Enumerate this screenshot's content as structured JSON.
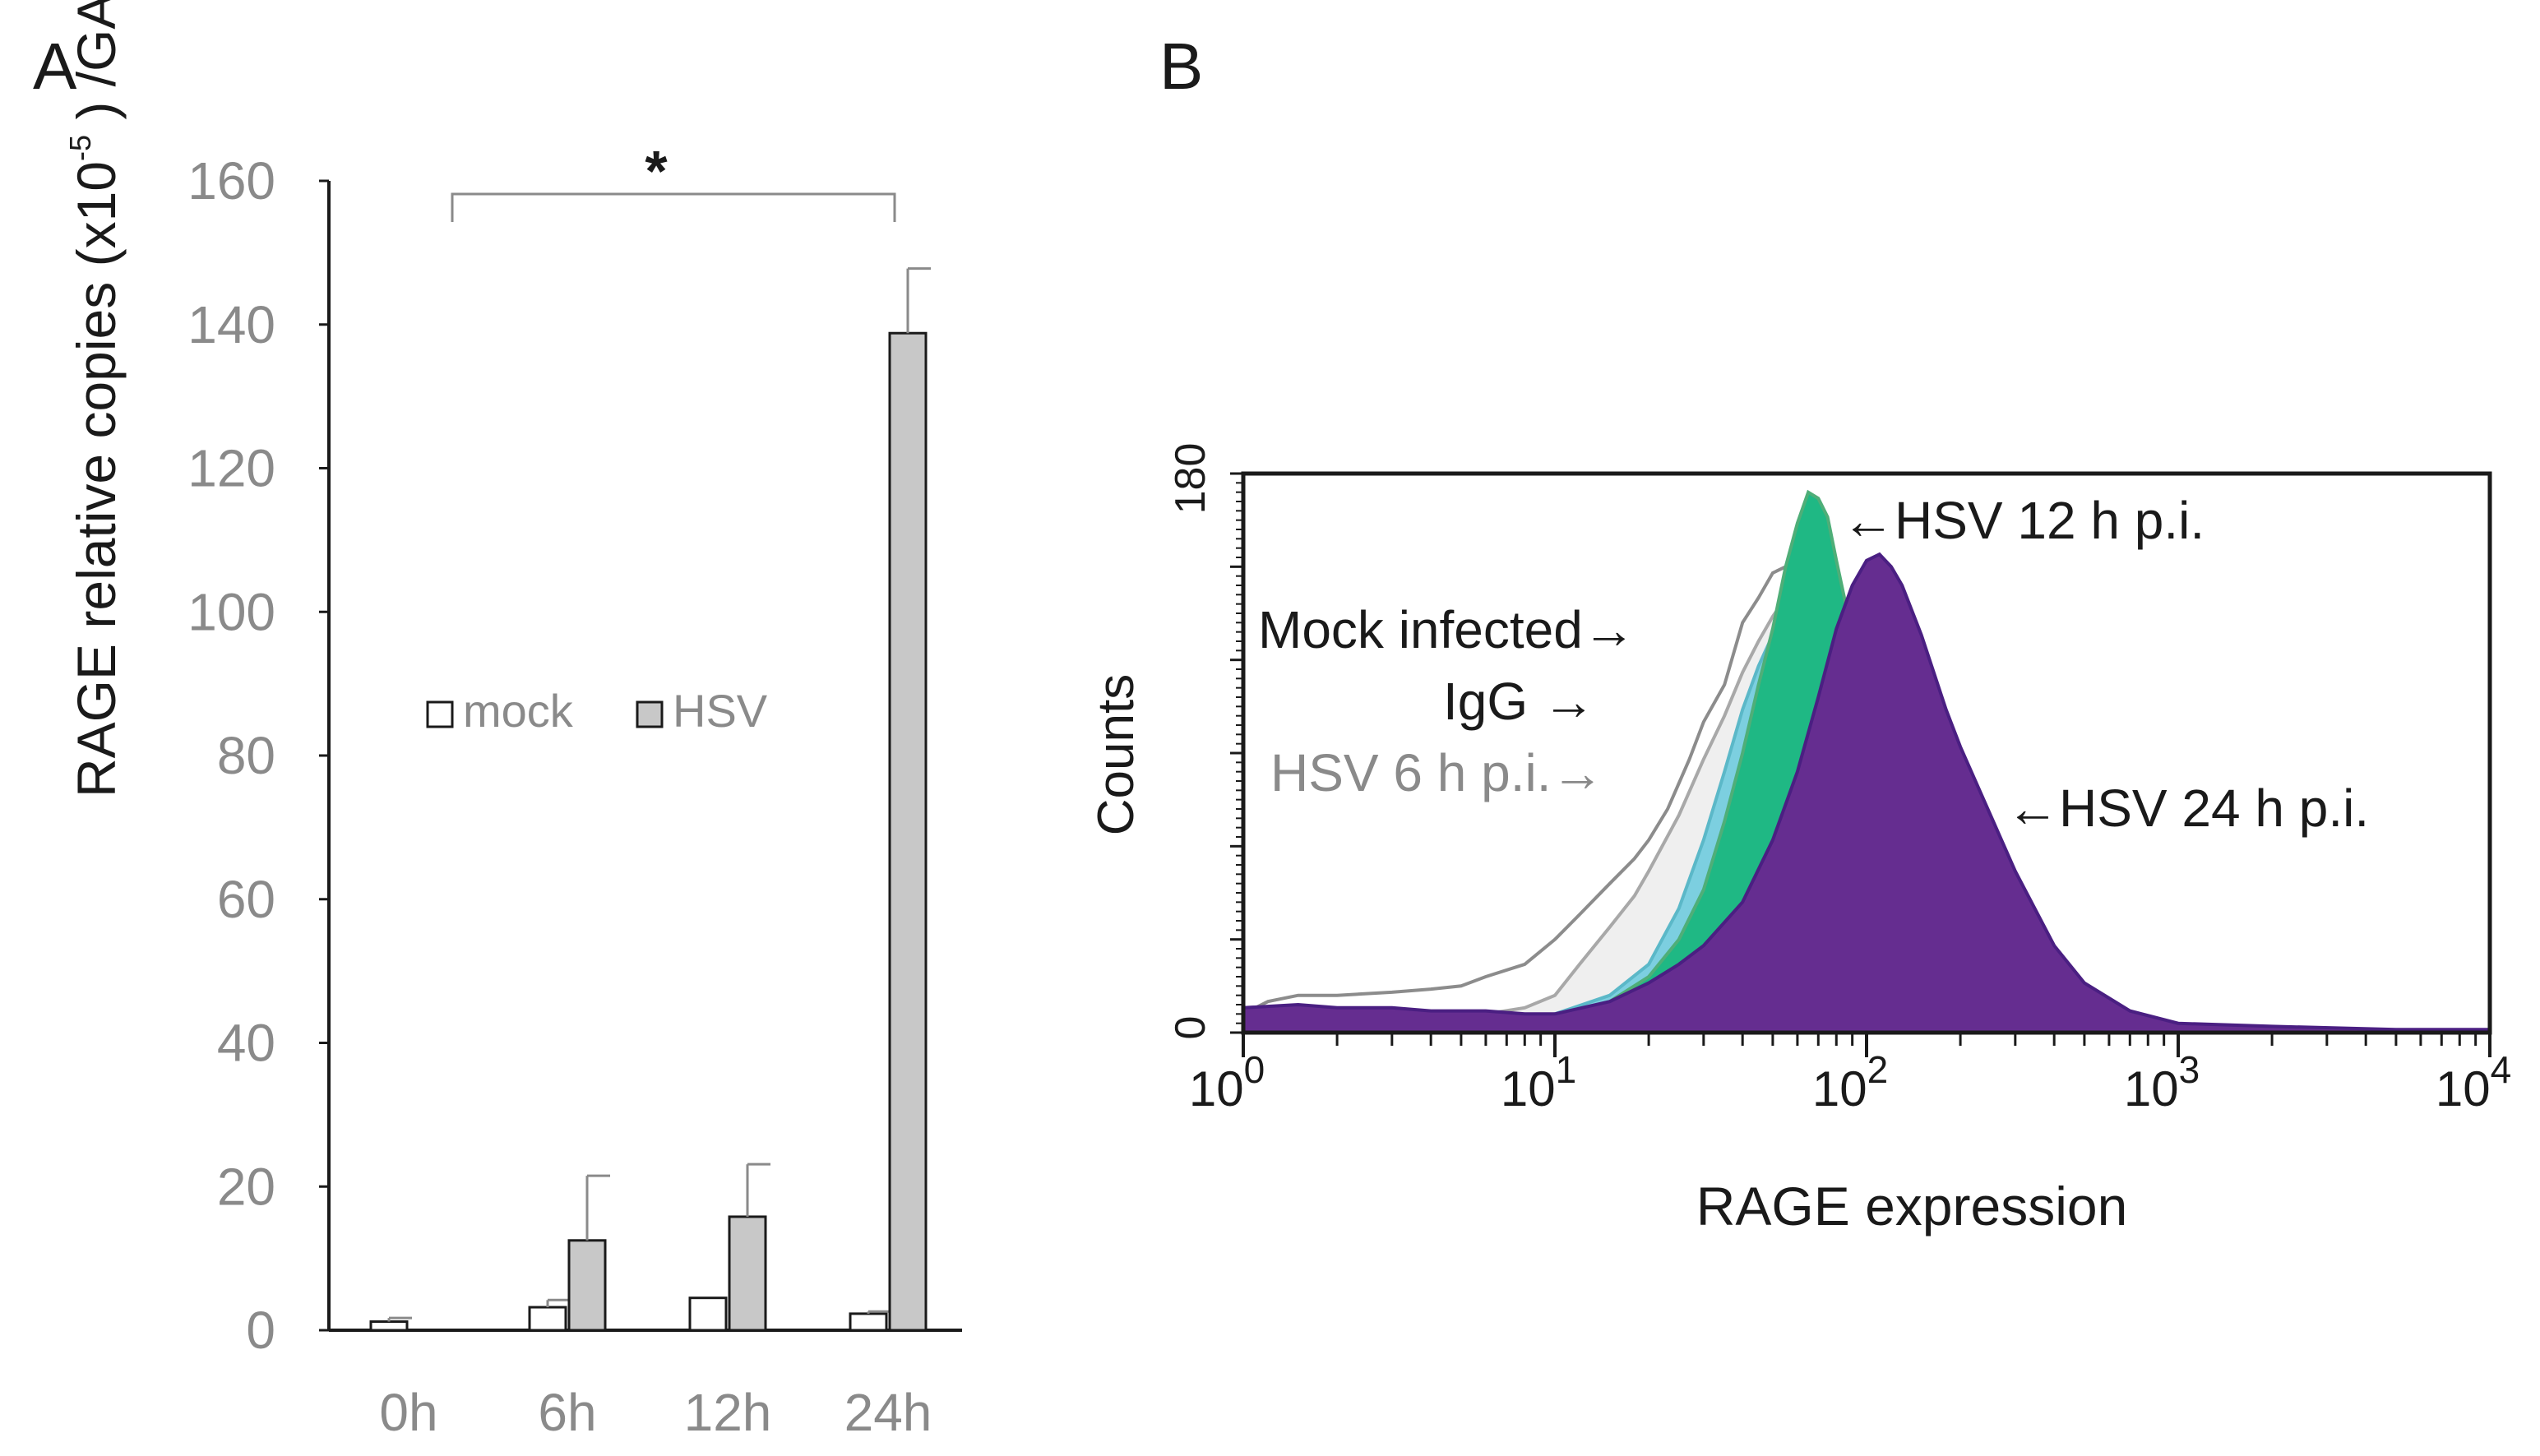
{
  "chart_data": [
    {
      "panel": "A",
      "type": "bar",
      "categories": [
        "0h",
        "6h",
        "12h",
        "24h"
      ],
      "series": [
        {
          "name": "mock",
          "values": [
            1.2,
            3.2,
            4.5,
            2.3
          ],
          "errors": [
            0.5,
            1.0,
            0.0,
            0.3
          ],
          "color": "#ffffff"
        },
        {
          "name": "HSV",
          "values": [
            0,
            12.5,
            15.8,
            138.8
          ],
          "errors": [
            0,
            9.0,
            7.3,
            9.0
          ],
          "color": "#c8c8c8"
        }
      ],
      "ylabel_main": "RAGE relative copies (x10",
      "ylabel_exp": "-5",
      "ylabel_tail": " ) /GAPDH",
      "ylim": [
        0,
        160
      ],
      "yticks": [
        "0",
        "20",
        "40",
        "60",
        "80",
        "100",
        "120",
        "140",
        "160"
      ],
      "significance": {
        "marker": "*",
        "from": "0h",
        "to": "24h"
      },
      "legend_position": "center-left"
    },
    {
      "panel": "B",
      "type": "area",
      "xlabel": "RAGE expression",
      "ylabel": "Counts",
      "xscale": "log",
      "xlim": [
        1,
        10000
      ],
      "ylim": [
        0,
        180
      ],
      "ytick_labels": [
        "0",
        "180"
      ],
      "xtick_bases": [
        "10",
        "10",
        "10",
        "10",
        "10"
      ],
      "xtick_exps": [
        "0",
        "1",
        "2",
        "3",
        "4"
      ],
      "series": [
        {
          "name": "Mock infected",
          "style": "line",
          "color": "#8c8c8c",
          "fill": "none",
          "x": [
            1,
            1.2,
            1.5,
            2,
            3,
            4,
            5,
            6,
            8,
            10,
            12,
            15,
            18,
            20,
            23,
            27,
            30,
            35,
            40,
            45,
            50,
            55,
            60,
            65,
            70,
            80,
            90,
            100,
            120,
            150,
            200,
            300,
            500,
            1000,
            3000,
            10000
          ],
          "y": [
            6,
            10,
            12,
            12,
            13,
            14,
            15,
            18,
            22,
            30,
            38,
            48,
            56,
            62,
            72,
            88,
            100,
            112,
            132,
            140,
            148,
            150,
            146,
            152,
            140,
            118,
            92,
            68,
            42,
            24,
            12,
            6,
            3,
            2,
            1,
            0
          ]
        },
        {
          "name": "HSV 6 h p.i.",
          "style": "line",
          "color": "#a8a8a8",
          "fill": "#efefef",
          "x": [
            1,
            2,
            4,
            6,
            8,
            10,
            12,
            15,
            18,
            20,
            25,
            30,
            35,
            40,
            45,
            50,
            55,
            60,
            65,
            70,
            80,
            90,
            100,
            120,
            150,
            200,
            300,
            500,
            1000,
            10000
          ],
          "y": [
            3,
            4,
            4,
            6,
            8,
            12,
            22,
            34,
            44,
            52,
            70,
            88,
            102,
            116,
            126,
            134,
            140,
            142,
            140,
            134,
            112,
            88,
            64,
            40,
            22,
            10,
            4,
            2,
            1,
            0
          ]
        },
        {
          "name": "IgG",
          "style": "area",
          "color": "#5bb8c8",
          "fill": "#7ccfe0",
          "x": [
            1,
            2,
            4,
            6,
            8,
            10,
            15,
            20,
            25,
            30,
            35,
            40,
            45,
            50,
            55,
            60,
            65,
            70,
            80,
            90,
            100,
            120,
            150,
            200,
            300,
            500,
            10000
          ],
          "y": [
            2,
            2,
            3,
            4,
            5,
            6,
            12,
            22,
            40,
            62,
            84,
            104,
            118,
            128,
            136,
            138,
            134,
            122,
            96,
            70,
            48,
            26,
            12,
            5,
            2,
            1,
            0
          ]
        },
        {
          "name": "HSV 12 h p.i.",
          "style": "area",
          "color": "#4fae78",
          "fill": "#1fb884",
          "x": [
            1,
            2,
            4,
            6,
            8,
            10,
            15,
            20,
            25,
            30,
            35,
            40,
            45,
            50,
            55,
            60,
            65,
            70,
            75,
            80,
            90,
            100,
            120,
            150,
            200,
            300,
            500,
            1000,
            10000
          ],
          "y": [
            2,
            2,
            3,
            3,
            4,
            5,
            10,
            18,
            30,
            46,
            68,
            90,
            112,
            130,
            150,
            164,
            174,
            172,
            166,
            152,
            128,
            100,
            62,
            32,
            14,
            5,
            2,
            1,
            0
          ]
        },
        {
          "name": "HSV 24 h p.i.",
          "style": "area",
          "color": "#4a1f82",
          "fill": "#652d90",
          "x": [
            1,
            1.5,
            2,
            3,
            4,
            6,
            8,
            10,
            15,
            20,
            25,
            30,
            40,
            50,
            60,
            70,
            80,
            90,
            100,
            110,
            120,
            130,
            150,
            180,
            200,
            250,
            300,
            400,
            500,
            700,
            1000,
            2000,
            5000,
            10000
          ],
          "y": [
            8,
            9,
            8,
            8,
            7,
            7,
            6,
            6,
            10,
            16,
            22,
            28,
            42,
            62,
            84,
            108,
            130,
            144,
            152,
            154,
            150,
            144,
            128,
            104,
            92,
            70,
            52,
            28,
            16,
            7,
            3,
            2,
            1,
            1
          ]
        }
      ]
    }
  ],
  "panel_a": {
    "letter": "A",
    "legend": {
      "mock": "mock",
      "hsv": "HSV"
    },
    "significance": "*"
  },
  "panel_b": {
    "letter": "B",
    "annotations": {
      "hsv12": "←HSV 12 h p.i.",
      "mock": "Mock infected→",
      "igg": "IgG →",
      "hsv6": "HSV 6 h p.i.→",
      "hsv24": "←HSV 24 h p.i."
    }
  },
  "colors": {
    "axis_gray": "#8a8a8a",
    "text_gray": "#8a8a8a",
    "black": "#1a1a1a"
  }
}
